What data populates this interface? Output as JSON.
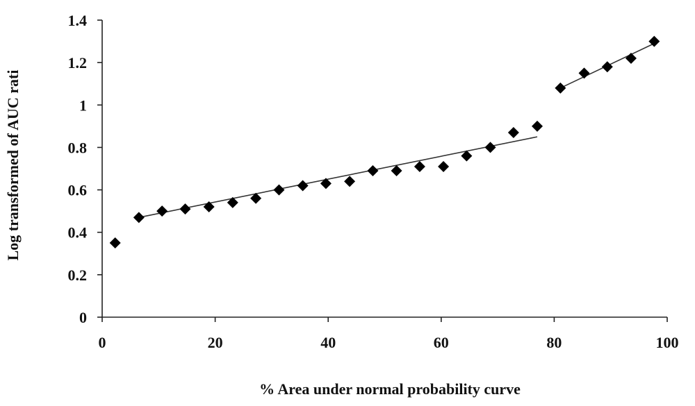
{
  "chart_data": {
    "type": "scatter",
    "xlabel": "% Area under normal probability curve",
    "ylabel": "Log transformed of AUC rati",
    "xlim": [
      0,
      100
    ],
    "ylim": [
      0,
      1.4
    ],
    "x_ticks": [
      "0",
      "20",
      "40",
      "60",
      "80",
      "100"
    ],
    "y_ticks": [
      "0",
      "0.2",
      "0.4",
      "0.6",
      "0.8",
      "1",
      "1.2",
      "1.4"
    ],
    "grid": false,
    "legend": "none",
    "series": [
      {
        "points": [
          [
            2.3,
            0.35
          ],
          [
            6.5,
            0.47
          ],
          [
            10.6,
            0.5
          ],
          [
            14.7,
            0.51
          ],
          [
            18.9,
            0.52
          ],
          [
            23.1,
            0.54
          ],
          [
            27.2,
            0.56
          ],
          [
            31.3,
            0.6
          ],
          [
            35.5,
            0.62
          ],
          [
            39.6,
            0.63
          ],
          [
            43.8,
            0.64
          ],
          [
            47.9,
            0.69
          ],
          [
            52.1,
            0.69
          ],
          [
            56.2,
            0.71
          ],
          [
            60.4,
            0.71
          ],
          [
            64.5,
            0.76
          ],
          [
            68.7,
            0.8
          ],
          [
            72.8,
            0.87
          ],
          [
            77.0,
            0.9
          ],
          [
            81.1,
            1.08
          ],
          [
            85.3,
            1.15
          ],
          [
            89.4,
            1.18
          ],
          [
            93.6,
            1.22
          ],
          [
            97.7,
            1.3
          ]
        ]
      }
    ],
    "trendlines": [
      {
        "x": [
          6.5,
          77.0
        ],
        "y": [
          0.47,
          0.85
        ]
      },
      {
        "x": [
          81.1,
          97.7
        ],
        "y": [
          1.08,
          1.29
        ]
      }
    ],
    "marker": "diamond",
    "marker_color": "#000000"
  }
}
